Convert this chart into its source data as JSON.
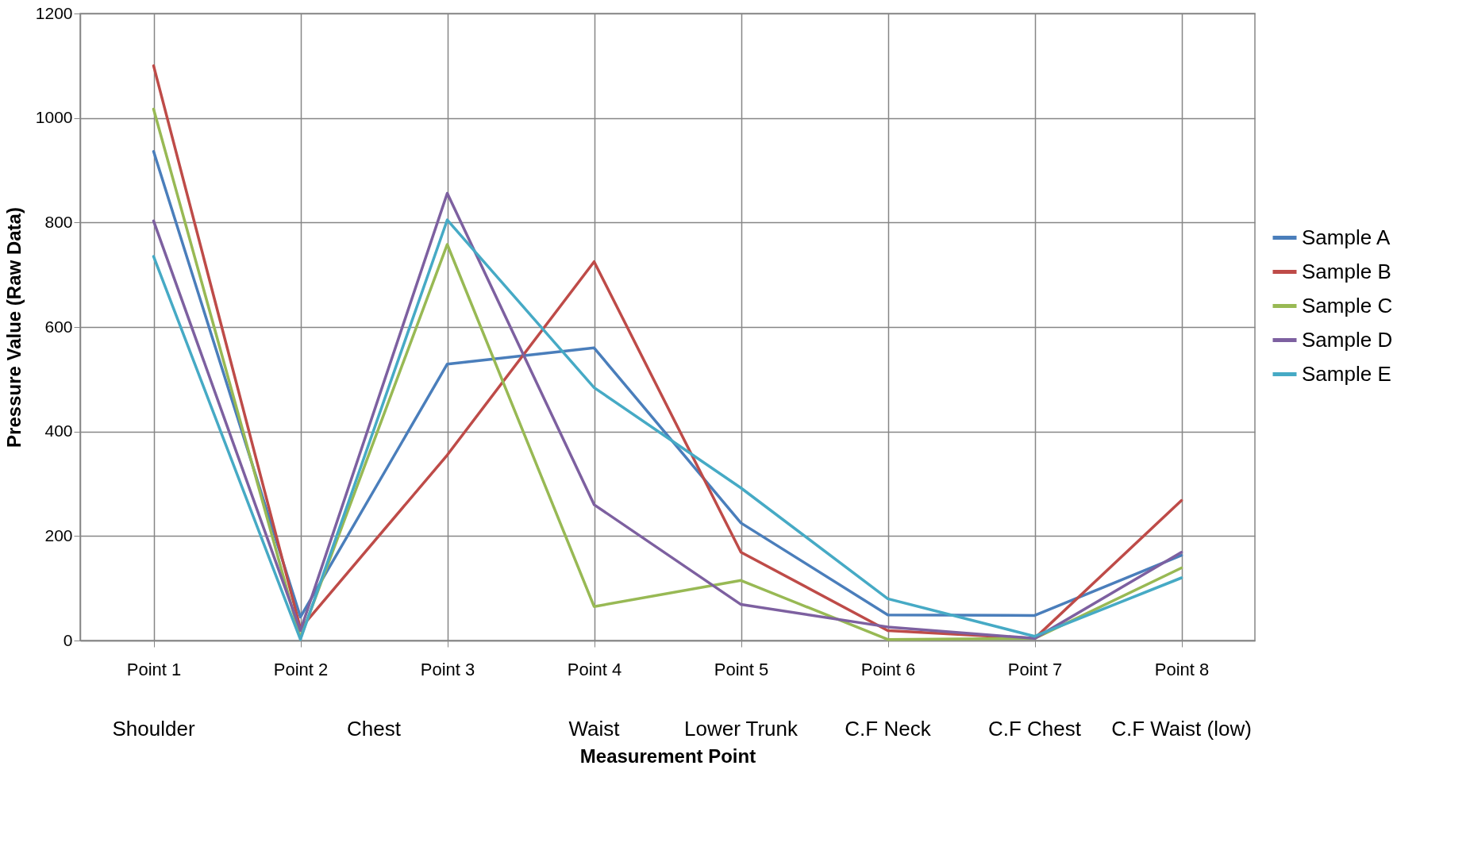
{
  "chart_data": {
    "type": "line",
    "xlabel": "Measurement Point",
    "ylabel": "Pressure Value (Raw Data)",
    "categories": [
      "Point 1",
      "Point 2",
      "Point 3",
      "Point 4",
      "Point 5",
      "Point 6",
      "Point 7",
      "Point 8"
    ],
    "series": [
      {
        "name": "Sample A",
        "color": "#4a7ebb",
        "values": [
          936,
          45,
          529,
          560,
          225,
          49,
          48,
          163
        ]
      },
      {
        "name": "Sample B",
        "color": "#be4b48",
        "values": [
          1100,
          23,
          355,
          725,
          169,
          19,
          4,
          268
        ]
      },
      {
        "name": "Sample C",
        "color": "#98b954",
        "values": [
          1017,
          5,
          758,
          65,
          115,
          2,
          4,
          139
        ]
      },
      {
        "name": "Sample D",
        "color": "#7d60a0",
        "values": [
          803,
          19,
          856,
          260,
          69,
          26,
          4,
          169
        ]
      },
      {
        "name": "Sample E",
        "color": "#46aac5",
        "values": [
          735,
          2,
          805,
          484,
          292,
          80,
          8,
          120
        ]
      }
    ],
    "ylim": [
      0,
      1200
    ],
    "yticks": [
      0,
      200,
      400,
      600,
      800,
      {
        "value": 1000,
        "label": "1000"
      },
      {
        "value": 1200,
        "label": "1200"
      }
    ],
    "grid": true,
    "legend": "right",
    "marker": "none",
    "line_style": "solid",
    "annotations": [
      "Shoulder",
      "Chest",
      "Waist",
      "Lower Trunk",
      "C.F Neck",
      "C.F Chest",
      "C.F Waist (low)"
    ]
  }
}
